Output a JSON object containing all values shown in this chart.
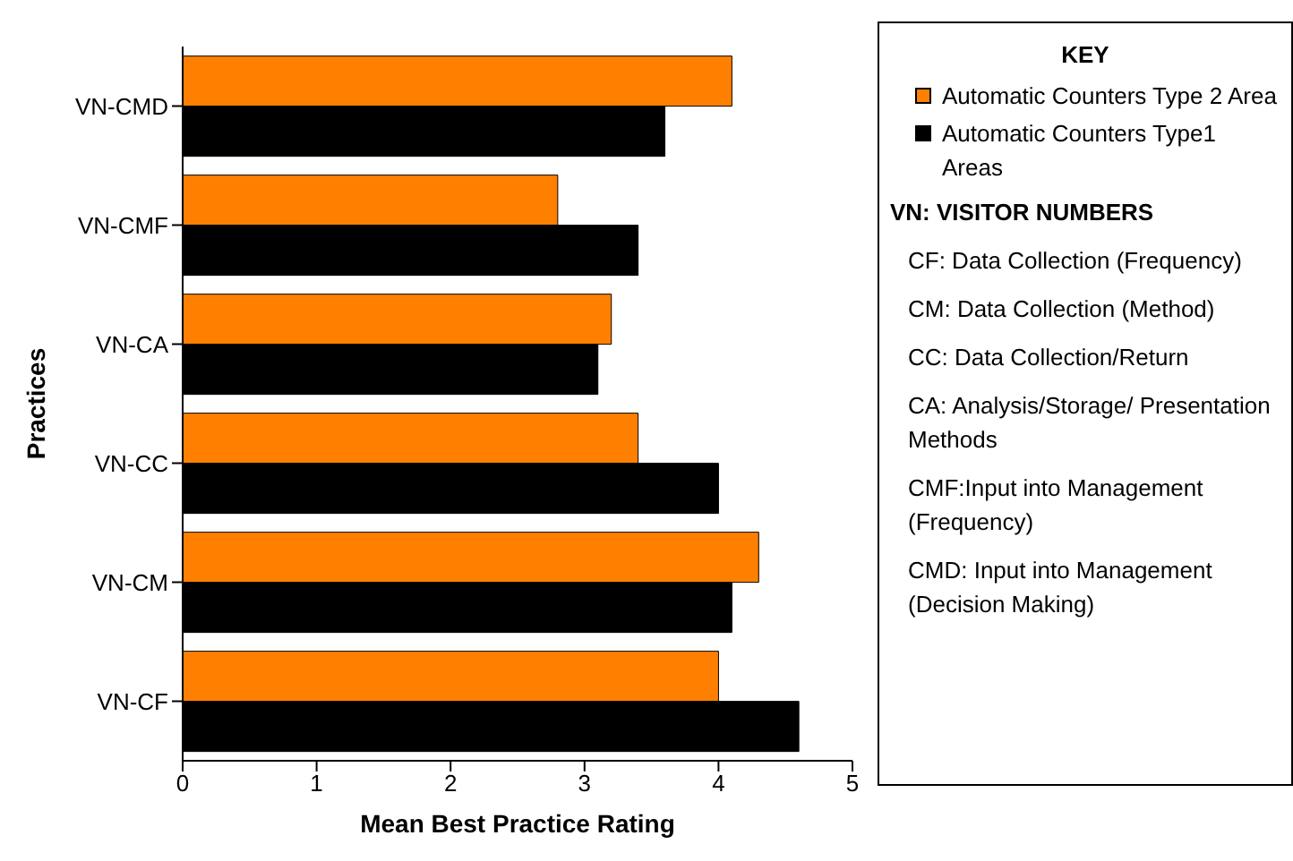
{
  "chart_data": {
    "type": "bar",
    "orientation": "horizontal",
    "xlabel": "Mean Best Practice Rating",
    "ylabel": "Practices",
    "legend_title": "KEY",
    "legend": "right",
    "categories": [
      "VN-CMD",
      "VN-CMF",
      "VN-CA",
      "VN-CC",
      "VN-CM",
      "VN-CF"
    ],
    "series": [
      {
        "name": "Automatic Counters Type 2 Area",
        "color": "#ff8000",
        "values": [
          4.1,
          2.8,
          3.2,
          3.4,
          4.3,
          4.0
        ]
      },
      {
        "name": "Automatic Counters Type1 Areas",
        "color": "#000000",
        "values": [
          3.6,
          3.4,
          3.1,
          4.0,
          4.1,
          4.6
        ]
      }
    ],
    "xlim": [
      0,
      5
    ],
    "xticks": [
      0,
      1,
      2,
      3,
      4,
      5
    ],
    "grid": false,
    "annotations": [
      "VN: VISITOR NUMBERS",
      "CF: Data Collection (Frequency)",
      "CM: Data Collection (Method)",
      "CC: Data Collection/Return",
      "CA: Analysis/Storage/ Presentation Methods",
      "CMF:Input into Management (Frequency)",
      "CMD: Input into Management (Decision Making)"
    ]
  }
}
